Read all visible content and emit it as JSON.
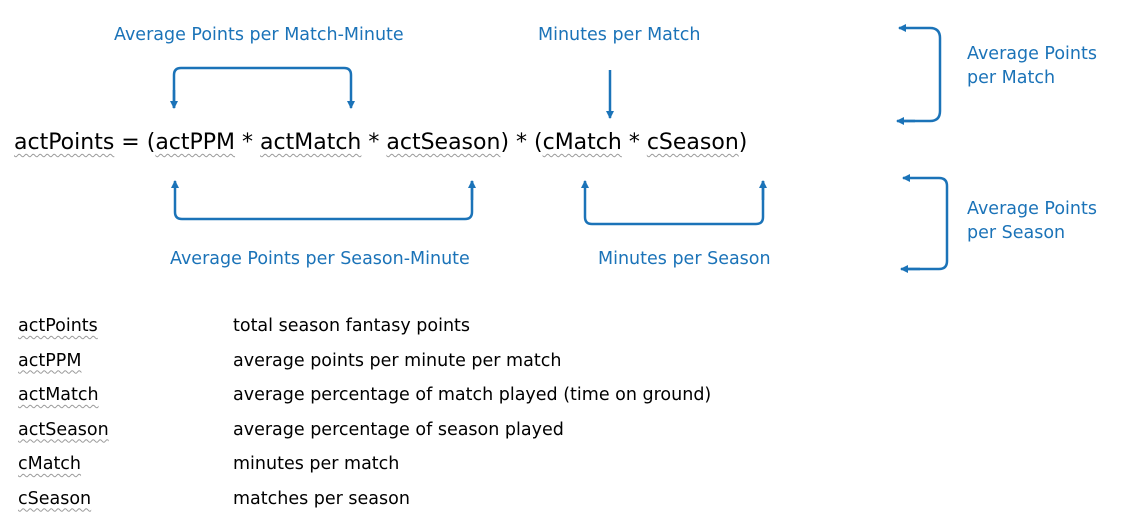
{
  "colors": {
    "accent": "#1b73b8",
    "text": "#000000",
    "underline": "#9a9a9a"
  },
  "labels": {
    "avg_points_match_minute": "Average Points per Match-Minute",
    "minutes_per_match": "Minutes per Match",
    "avg_points_per_match": "Average Points per Match",
    "avg_points_season_minute": "Average Points per Season-Minute",
    "minutes_per_season": "Minutes per Season",
    "avg_points_per_season": "Average Points per Season"
  },
  "formula": {
    "lhs": "actPoints",
    "eq": " = (",
    "t1": "actPPM",
    "op1": " * ",
    "t2": "actMatch",
    "op2": " * ",
    "t3": "actSeason",
    "mid": ") * (",
    "t4": "cMatch",
    "op3": " * ",
    "t5": "cSeason",
    "end": ")"
  },
  "legend": [
    {
      "term": "actPoints",
      "definition": "total season fantasy points"
    },
    {
      "term": "actPPM",
      "definition": "average points per minute per match"
    },
    {
      "term": "actMatch",
      "definition": "average percentage of match played (time on ground)"
    },
    {
      "term": "actSeason",
      "definition": "average percentage of season played"
    },
    {
      "term": "cMatch",
      "definition": "minutes per match"
    },
    {
      "term": "cSeason",
      "definition": "matches per season"
    }
  ]
}
